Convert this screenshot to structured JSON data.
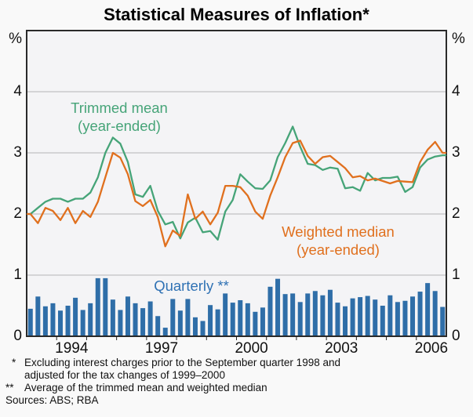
{
  "title": "Statistical Measures of Inflation*",
  "axes": {
    "percent_left": "%",
    "percent_right": "%",
    "y_ticks": [
      "0",
      "1",
      "2",
      "3",
      "4"
    ],
    "x_labels": [
      "1994",
      "1997",
      "2000",
      "2003",
      "2006"
    ],
    "x_label_years": [
      1994,
      1997,
      2000,
      2003,
      2006
    ]
  },
  "colors": {
    "trimmed_mean": "#46a478",
    "weighted_median": "#e0701e",
    "quarterly_bar": "#2f6ea8",
    "quarterly_label": "#3072b4",
    "plot_background": "#f4f4f6",
    "plot_border": "#2a2a2a",
    "gridline": "#b5b5b5"
  },
  "chart_data": {
    "type": "mixed",
    "title": "Statistical Measures of Inflation*",
    "xlabel": "",
    "ylabel": "%",
    "ylim": [
      0,
      5
    ],
    "grid_values": [
      1,
      2,
      3,
      4
    ],
    "legend_position": "inline-annotations",
    "x": {
      "frequency": "quarterly",
      "start": "1993Q1",
      "end": "2006Q4",
      "axis_start_year": 1993,
      "axis_end_year": 2007,
      "tick_labels": [
        "1994",
        "1997",
        "2000",
        "2003",
        "2006"
      ]
    },
    "series": [
      {
        "name": "Trimmed mean (year-ended)",
        "type": "line",
        "color": "#46a478",
        "values": [
          2.0,
          2.1,
          2.2,
          2.25,
          2.25,
          2.2,
          2.25,
          2.25,
          2.35,
          2.6,
          3.0,
          3.25,
          3.15,
          2.85,
          2.32,
          2.28,
          2.46,
          2.05,
          1.83,
          1.87,
          1.6,
          1.86,
          1.94,
          1.7,
          1.72,
          1.58,
          2.04,
          2.23,
          2.65,
          2.53,
          2.42,
          2.41,
          2.55,
          2.93,
          3.16,
          3.43,
          3.1,
          2.82,
          2.8,
          2.72,
          2.76,
          2.74,
          2.42,
          2.44,
          2.38,
          2.67,
          2.55,
          2.59,
          2.59,
          2.61,
          2.36,
          2.44,
          2.76,
          2.89,
          2.94,
          2.96
        ]
      },
      {
        "name": "Weighted median (year-ended)",
        "type": "line",
        "color": "#e0701e",
        "values": [
          2.0,
          1.85,
          2.1,
          2.05,
          1.9,
          2.1,
          1.85,
          2.05,
          1.95,
          2.2,
          2.6,
          3.0,
          2.92,
          2.65,
          2.21,
          2.13,
          2.23,
          1.95,
          1.47,
          1.73,
          1.64,
          2.32,
          1.92,
          2.04,
          1.83,
          2.02,
          2.46,
          2.46,
          2.44,
          2.3,
          2.04,
          1.92,
          2.3,
          2.6,
          2.93,
          3.16,
          3.2,
          2.95,
          2.82,
          2.93,
          2.95,
          2.85,
          2.75,
          2.6,
          2.62,
          2.55,
          2.58,
          2.54,
          2.5,
          2.54,
          2.53,
          2.52,
          2.85,
          3.05,
          3.18,
          3.0
        ]
      },
      {
        "name": "Quarterly **",
        "type": "bar",
        "color": "#2f6ea8",
        "values": [
          0.45,
          0.65,
          0.49,
          0.54,
          0.42,
          0.5,
          0.63,
          0.43,
          0.54,
          0.95,
          0.95,
          0.6,
          0.43,
          0.65,
          0.54,
          0.46,
          0.57,
          0.33,
          0.14,
          0.61,
          0.42,
          0.61,
          0.31,
          0.25,
          0.51,
          0.44,
          0.7,
          0.55,
          0.59,
          0.54,
          0.4,
          0.47,
          0.81,
          0.94,
          0.69,
          0.7,
          0.56,
          0.7,
          0.74,
          0.67,
          0.76,
          0.55,
          0.49,
          0.62,
          0.64,
          0.66,
          0.6,
          0.5,
          0.67,
          0.56,
          0.58,
          0.65,
          0.73,
          0.87,
          0.74,
          0.48
        ]
      }
    ]
  },
  "annotations": {
    "trimmed_mean": {
      "line1": "Trimmed mean",
      "line2": "(year-ended)"
    },
    "weighted_median": {
      "line1": "Weighted median",
      "line2": "(year-ended)"
    },
    "quarterly": {
      "label": "Quarterly **"
    }
  },
  "footnotes": {
    "f1": {
      "marker": "*",
      "line1": "Excluding interest charges prior to the September quarter 1998 and",
      "line2": "adjusted for the tax changes of 1999–2000"
    },
    "f2": {
      "marker": "**",
      "text": "Average of the trimmed mean and weighted median"
    },
    "sources": "Sources: ABS; RBA"
  }
}
